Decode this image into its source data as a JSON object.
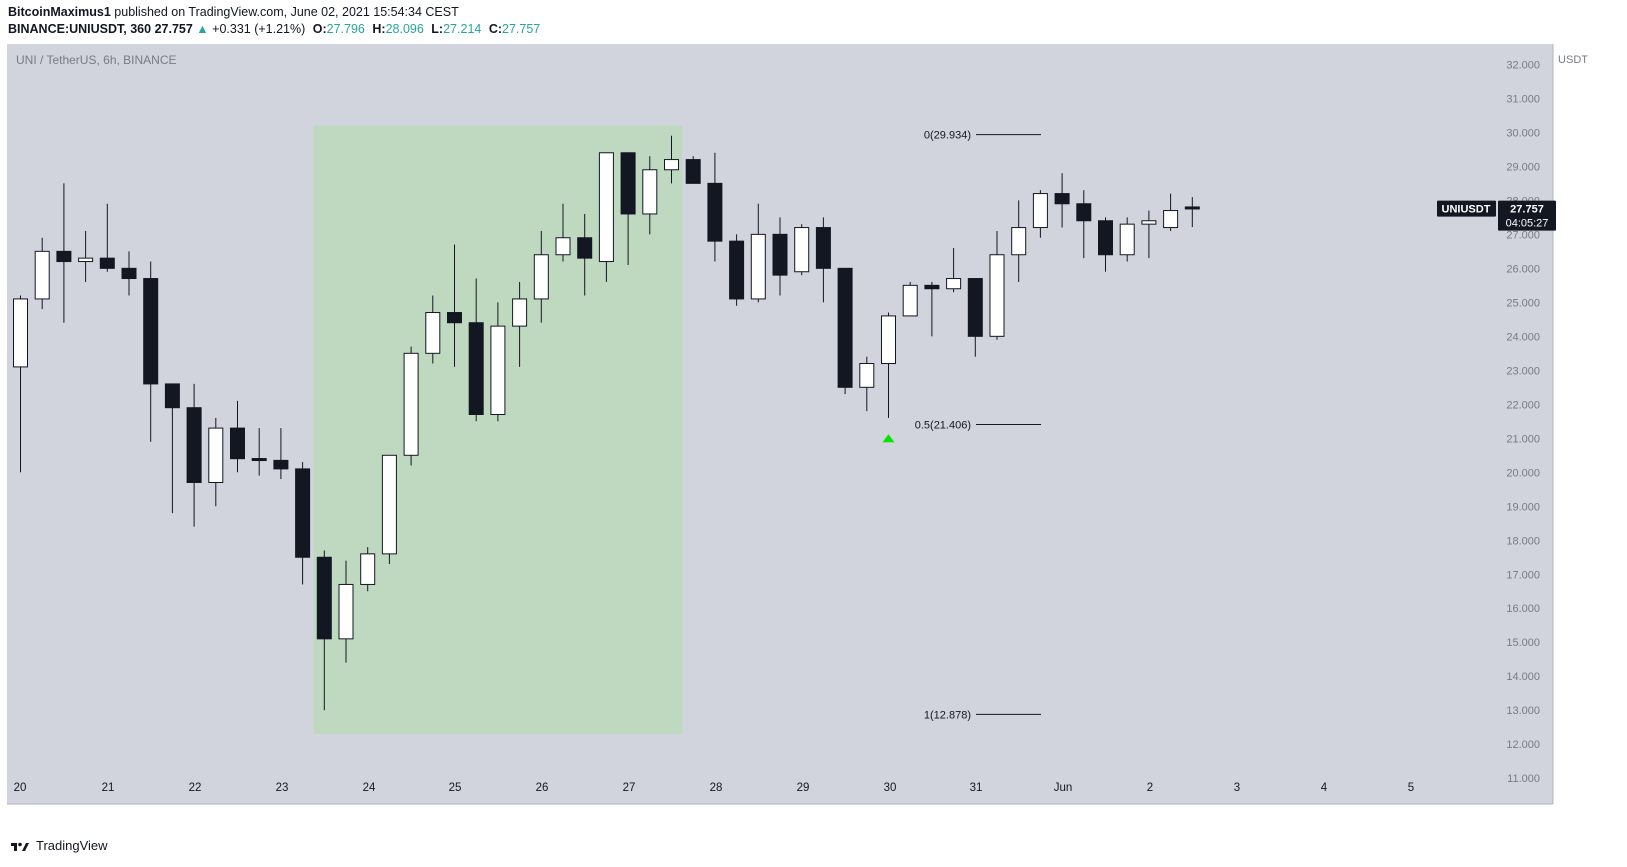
{
  "header": {
    "publisher": "BitcoinMaximus1",
    "published_text": "published on TradingView.com, June 02, 2021 15:54:34 CEST",
    "symbol": "BINANCE:UNIUSDT, 360",
    "last": "27.757",
    "change_arrow": "▲",
    "change": "+0.331 (+1.21%)",
    "o_label": "O:",
    "o_value": "27.796",
    "h_label": "H:",
    "h_value": "28.096",
    "l_label": "L:",
    "l_value": "27.214",
    "c_label": "C:",
    "c_value": "27.757"
  },
  "chart_data": {
    "type": "candlestick",
    "title": "UNI / TetherUS, 6h, BINANCE",
    "currency_label": "USDT",
    "y_ticks": [
      "32.000",
      "31.000",
      "30.000",
      "29.000",
      "28.000",
      "27.000",
      "26.000",
      "25.000",
      "24.000",
      "23.000",
      "22.000",
      "21.000",
      "20.000",
      "19.000",
      "18.000",
      "17.000",
      "16.000",
      "15.000",
      "14.000",
      "13.000",
      "12.000",
      "11.000"
    ],
    "ylim": [
      10.8,
      32.6
    ],
    "x_ticks": [
      "20",
      "21",
      "22",
      "23",
      "24",
      "25",
      "26",
      "27",
      "28",
      "29",
      "30",
      "31",
      "Jun",
      "2",
      "3",
      "4",
      "5"
    ],
    "xlim_index": [
      -0.3,
      68.5
    ],
    "candles": [
      {
        "o": 23.1,
        "h": 25.2,
        "l": 20.0,
        "c": 25.1
      },
      {
        "o": 25.1,
        "h": 26.9,
        "l": 24.8,
        "c": 26.5
      },
      {
        "o": 26.5,
        "h": 28.5,
        "l": 24.4,
        "c": 26.2
      },
      {
        "o": 26.2,
        "h": 27.1,
        "l": 25.6,
        "c": 26.3
      },
      {
        "o": 26.3,
        "h": 27.9,
        "l": 25.9,
        "c": 26.0
      },
      {
        "o": 26.0,
        "h": 26.5,
        "l": 25.2,
        "c": 25.7
      },
      {
        "o": 25.7,
        "h": 26.2,
        "l": 20.9,
        "c": 22.6
      },
      {
        "o": 22.6,
        "h": 22.6,
        "l": 18.8,
        "c": 21.9
      },
      {
        "o": 21.9,
        "h": 22.6,
        "l": 18.4,
        "c": 19.7
      },
      {
        "o": 19.7,
        "h": 21.6,
        "l": 19.0,
        "c": 21.3
      },
      {
        "o": 21.3,
        "h": 22.1,
        "l": 20.0,
        "c": 20.4
      },
      {
        "o": 20.4,
        "h": 21.3,
        "l": 19.9,
        "c": 20.35
      },
      {
        "o": 20.35,
        "h": 21.3,
        "l": 19.8,
        "c": 20.1
      },
      {
        "o": 20.1,
        "h": 20.3,
        "l": 16.7,
        "c": 17.5
      },
      {
        "o": 17.5,
        "h": 17.7,
        "l": 13.0,
        "c": 15.1
      },
      {
        "o": 15.1,
        "h": 17.4,
        "l": 14.4,
        "c": 16.7
      },
      {
        "o": 16.7,
        "h": 17.8,
        "l": 16.5,
        "c": 17.6
      },
      {
        "o": 17.6,
        "h": 20.4,
        "l": 17.3,
        "c": 20.5
      },
      {
        "o": 20.5,
        "h": 23.7,
        "l": 20.2,
        "c": 23.5
      },
      {
        "o": 23.5,
        "h": 25.2,
        "l": 23.2,
        "c": 24.7
      },
      {
        "o": 24.7,
        "h": 26.7,
        "l": 23.1,
        "c": 24.4
      },
      {
        "o": 24.4,
        "h": 25.7,
        "l": 21.5,
        "c": 21.7
      },
      {
        "o": 21.7,
        "h": 25.0,
        "l": 21.5,
        "c": 24.3
      },
      {
        "o": 24.3,
        "h": 25.6,
        "l": 23.1,
        "c": 25.1
      },
      {
        "o": 25.1,
        "h": 27.1,
        "l": 24.4,
        "c": 26.4
      },
      {
        "o": 26.4,
        "h": 27.9,
        "l": 26.2,
        "c": 26.9
      },
      {
        "o": 26.9,
        "h": 27.6,
        "l": 25.2,
        "c": 26.3
      },
      {
        "o": 26.2,
        "h": 29.4,
        "l": 25.6,
        "c": 29.4
      },
      {
        "o": 29.4,
        "h": 29.4,
        "l": 26.1,
        "c": 27.6
      },
      {
        "o": 27.6,
        "h": 29.3,
        "l": 27.0,
        "c": 28.9
      },
      {
        "o": 28.9,
        "h": 29.9,
        "l": 28.5,
        "c": 29.2
      },
      {
        "o": 29.2,
        "h": 29.3,
        "l": 28.5,
        "c": 28.5
      },
      {
        "o": 28.5,
        "h": 29.4,
        "l": 26.2,
        "c": 26.8
      },
      {
        "o": 26.8,
        "h": 27.0,
        "l": 24.9,
        "c": 25.1
      },
      {
        "o": 25.1,
        "h": 27.9,
        "l": 25.0,
        "c": 27.0
      },
      {
        "o": 27.0,
        "h": 27.5,
        "l": 25.2,
        "c": 25.8
      },
      {
        "o": 25.9,
        "h": 27.3,
        "l": 25.8,
        "c": 27.2
      },
      {
        "o": 27.2,
        "h": 27.5,
        "l": 25.0,
        "c": 26.0
      },
      {
        "o": 26.0,
        "h": 26.0,
        "l": 22.3,
        "c": 22.5
      },
      {
        "o": 22.5,
        "h": 23.4,
        "l": 21.8,
        "c": 23.2
      },
      {
        "o": 23.2,
        "h": 24.7,
        "l": 21.6,
        "c": 24.6
      },
      {
        "o": 24.6,
        "h": 25.6,
        "l": 24.6,
        "c": 25.5
      },
      {
        "o": 25.5,
        "h": 25.6,
        "l": 24.0,
        "c": 25.4
      },
      {
        "o": 25.4,
        "h": 26.6,
        "l": 25.3,
        "c": 25.7
      },
      {
        "o": 25.7,
        "h": 25.7,
        "l": 23.4,
        "c": 24.0
      },
      {
        "o": 24.0,
        "h": 27.1,
        "l": 23.9,
        "c": 26.4
      },
      {
        "o": 26.4,
        "h": 28.0,
        "l": 25.6,
        "c": 27.2
      },
      {
        "o": 27.2,
        "h": 28.3,
        "l": 26.9,
        "c": 28.2
      },
      {
        "o": 28.2,
        "h": 28.8,
        "l": 27.2,
        "c": 27.9
      },
      {
        "o": 27.9,
        "h": 28.3,
        "l": 26.3,
        "c": 27.4
      },
      {
        "o": 27.4,
        "h": 27.5,
        "l": 25.9,
        "c": 26.4
      },
      {
        "o": 26.4,
        "h": 27.5,
        "l": 26.2,
        "c": 27.3
      },
      {
        "o": 27.3,
        "h": 27.7,
        "l": 26.3,
        "c": 27.4
      },
      {
        "o": 27.2,
        "h": 28.2,
        "l": 27.1,
        "c": 27.7
      },
      {
        "o": 27.796,
        "h": 28.096,
        "l": 27.214,
        "c": 27.757
      }
    ],
    "highlight_region": {
      "from_index": 13.5,
      "to_index": 30.5,
      "y_from": 12.3,
      "y_to": 30.2,
      "color": "#bfd9c0"
    },
    "fib_levels": [
      {
        "label": "0(29.934)",
        "value": 29.934
      },
      {
        "label": "0.5(21.406)",
        "value": 21.406
      },
      {
        "label": "1(12.878)",
        "value": 12.878
      }
    ],
    "marker": {
      "index": 40,
      "value": 21.0,
      "color": "#00e600"
    },
    "last_price": {
      "symbol": "UNIUSDT",
      "price": "27.757",
      "countdown": "04:05:27",
      "value": 27.757
    },
    "colors": {
      "background": "#d1d4dc",
      "up_body": "#ffffff",
      "down_body": "#131722",
      "wick": "#131722"
    }
  },
  "footer": {
    "brand": "TradingView",
    "logo_icon": "tradingview-logo-icon"
  }
}
